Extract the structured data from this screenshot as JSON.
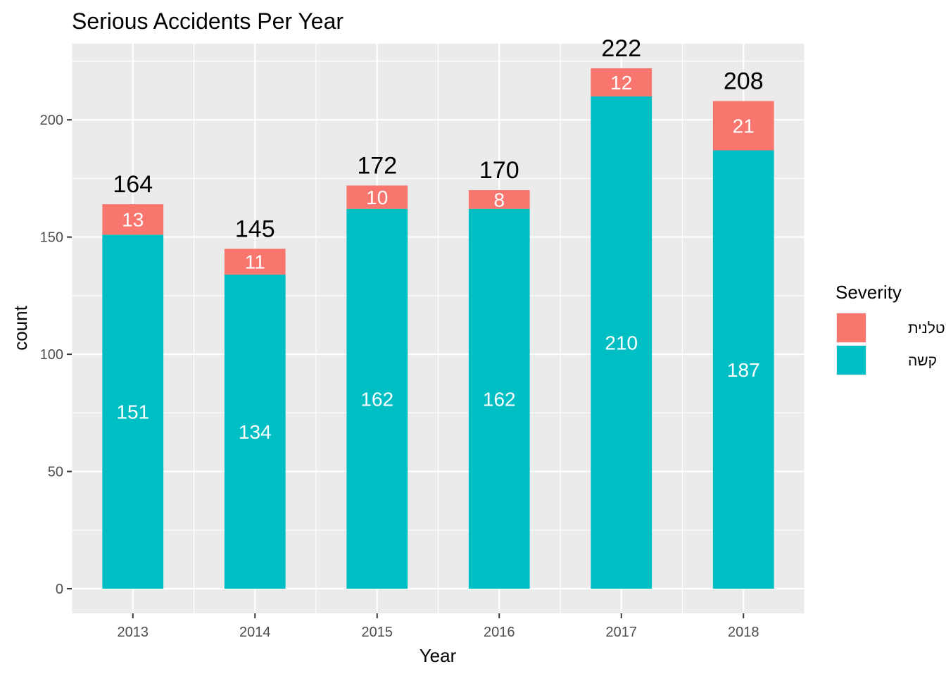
{
  "chart_data": {
    "type": "bar",
    "stacked": true,
    "title": "Serious Accidents Per Year",
    "xlabel": "Year",
    "ylabel": "count",
    "categories": [
      "2013",
      "2014",
      "2015",
      "2016",
      "2017",
      "2018"
    ],
    "series": [
      {
        "name": "קשה",
        "values": [
          151,
          134,
          162,
          162,
          210,
          187
        ],
        "color": "#00BFC4"
      },
      {
        "name": "קטלנית",
        "values": [
          13,
          11,
          10,
          8,
          12,
          21
        ],
        "color": "#F8766D"
      }
    ],
    "totals": [
      164,
      145,
      172,
      170,
      222,
      208
    ],
    "ylim": [
      -10.5,
      232.5
    ],
    "yticks": [
      0,
      50,
      100,
      150,
      200
    ],
    "grid": true,
    "panel_background": "#EBEBEB",
    "legend": {
      "title": "Severity",
      "position": "right",
      "entries": [
        {
          "label": "קטלנית",
          "color": "#F8766D"
        },
        {
          "label": "קשה",
          "color": "#00BFC4"
        }
      ]
    }
  }
}
